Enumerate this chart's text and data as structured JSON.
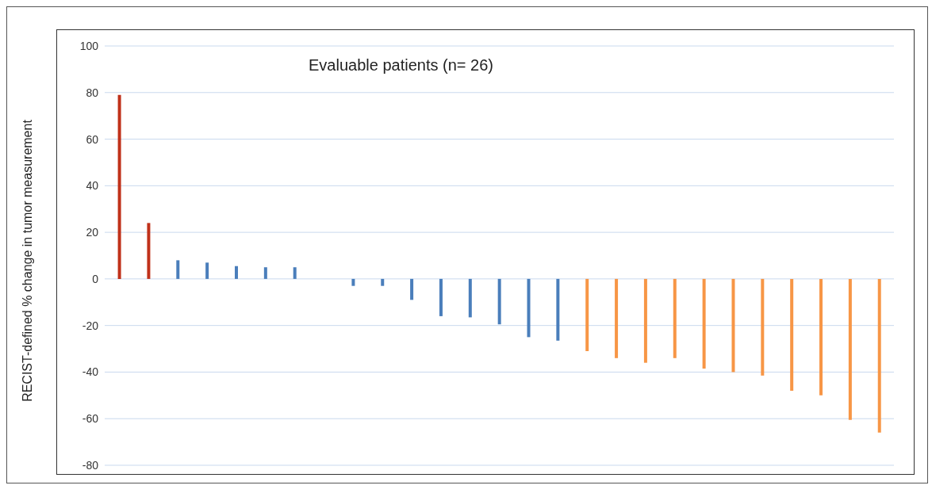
{
  "chart_data": {
    "type": "bar",
    "title": "Evaluable patients (n= 26)",
    "ylabel": "RECIST-defined % change in tumor measurement",
    "categories": [
      null,
      null,
      null,
      null,
      null,
      null,
      null,
      null,
      null,
      null,
      null,
      null,
      null,
      null,
      null,
      null,
      null,
      null,
      null,
      null,
      null,
      null,
      null,
      null,
      null,
      null,
      null
    ],
    "values": [
      79,
      24,
      8,
      7,
      5.5,
      5,
      5,
      0,
      -3,
      -3,
      -9,
      -16,
      -16.5,
      -19.5,
      -25,
      -26.5,
      -31,
      -34,
      -36,
      -34,
      -38.5,
      -40,
      -41.5,
      -48,
      -50,
      -60.5,
      -66
    ],
    "colors": [
      "#c0311a",
      "#c0311a",
      "#4a7ebb",
      "#4a7ebb",
      "#4a7ebb",
      "#4a7ebb",
      "#4a7ebb",
      "#4a7ebb",
      "#4a7ebb",
      "#4a7ebb",
      "#4a7ebb",
      "#4a7ebb",
      "#4a7ebb",
      "#4a7ebb",
      "#4a7ebb",
      "#4a7ebb",
      "#f79646",
      "#f79646",
      "#f79646",
      "#f79646",
      "#f79646",
      "#f79646",
      "#f79646",
      "#f79646",
      "#f79646",
      "#f79646",
      "#f79646"
    ],
    "ylim": [
      -80,
      100
    ],
    "yticks": [
      -80,
      -60,
      -40,
      -20,
      0,
      20,
      40,
      60,
      80,
      100
    ],
    "grid": "y",
    "tick_labels": "y"
  }
}
